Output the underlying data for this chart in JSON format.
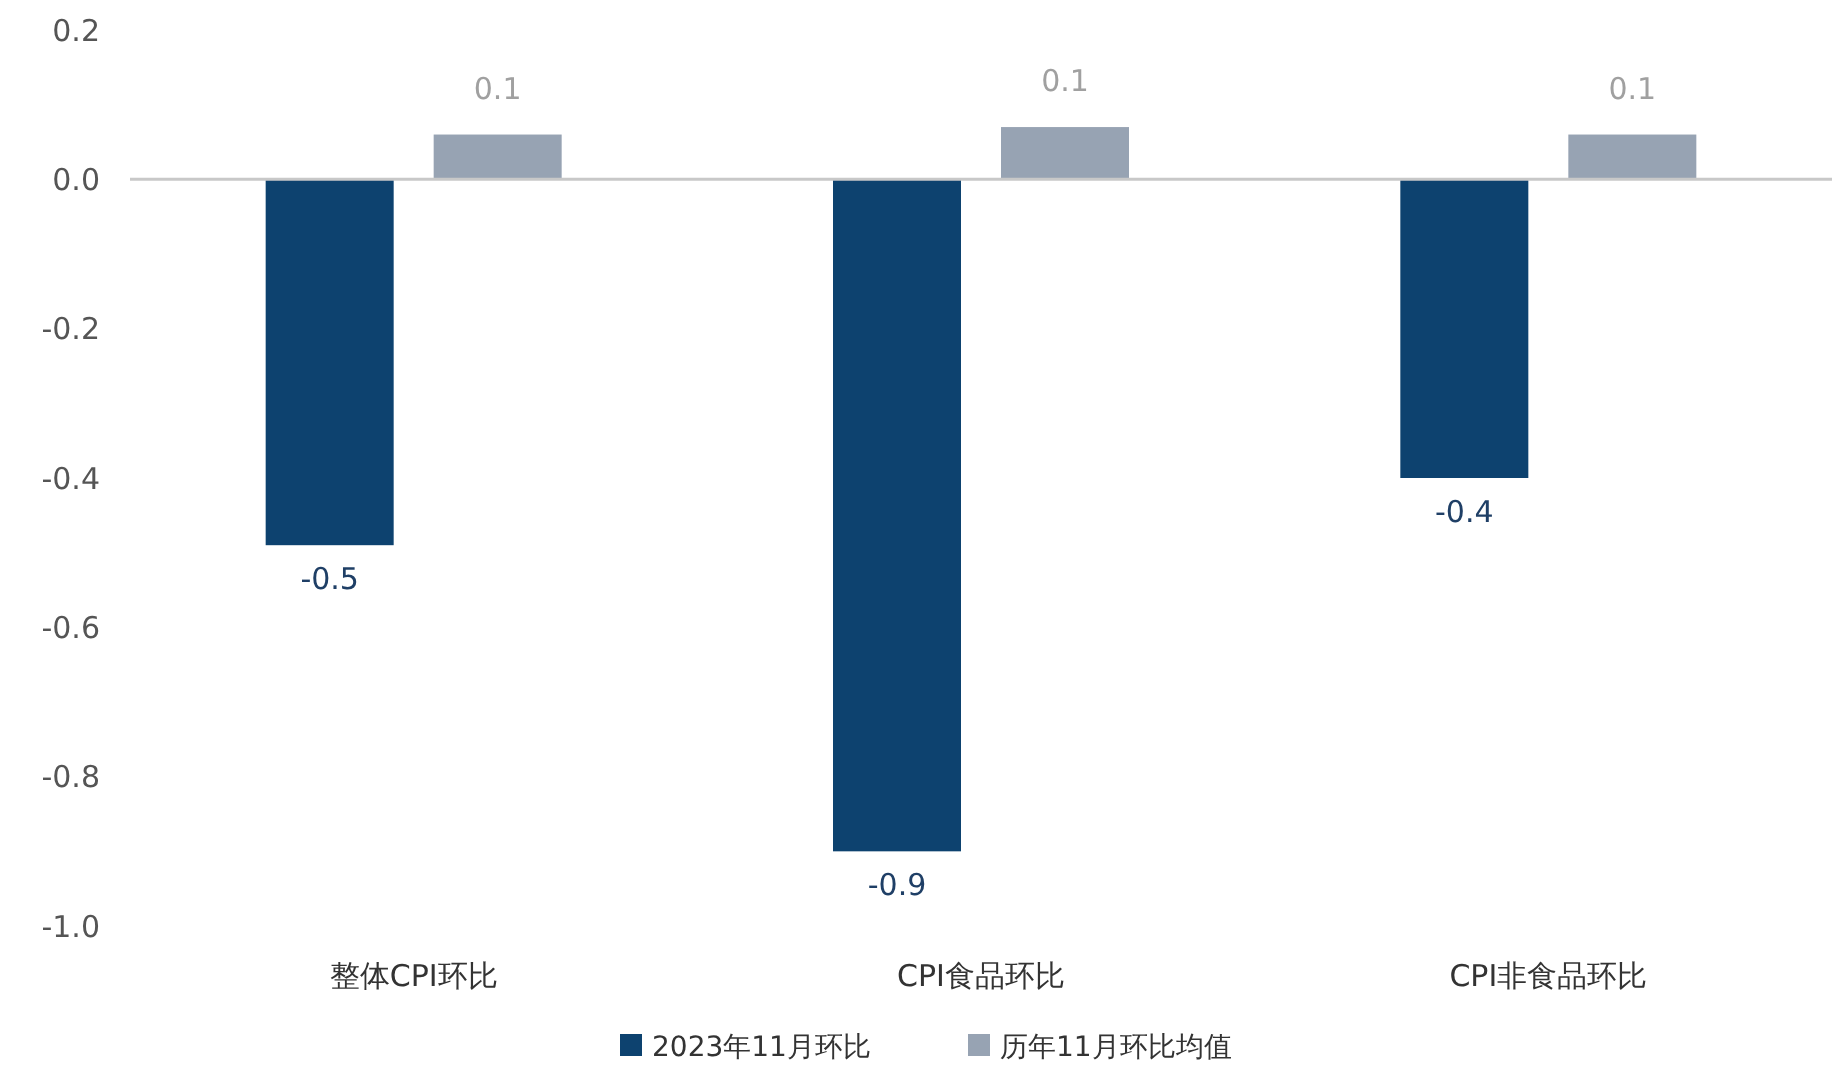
{
  "chart_data": {
    "type": "bar",
    "categories": [
      "整体CPI环比",
      "CPI食品环比",
      "CPI非食品环比"
    ],
    "series": [
      {
        "name": "2023年11月环比",
        "color": "#0d426f",
        "values": [
          -0.49,
          -0.9,
          -0.4
        ],
        "value_labels": [
          "-0.5",
          "-0.9",
          "-0.4"
        ]
      },
      {
        "name": "历年11月环比均值",
        "color": "#97a3b3",
        "values": [
          0.06,
          0.07,
          0.06
        ],
        "value_labels": [
          "0.1",
          "0.1",
          "0.1"
        ]
      }
    ],
    "ylim": [
      -1.0,
      0.2
    ],
    "yticks": [
      {
        "value": -1.0,
        "label": "-1.0"
      },
      {
        "value": -0.8,
        "label": "-0.8"
      },
      {
        "value": -0.6,
        "label": "-0.6"
      },
      {
        "value": -0.4,
        "label": "-0.4"
      },
      {
        "value": -0.2,
        "label": "-0.2"
      },
      {
        "value": 0,
        "label": "0.0"
      },
      {
        "value": 0.2,
        "label": "0.2"
      }
    ],
    "legend": "bottom"
  }
}
